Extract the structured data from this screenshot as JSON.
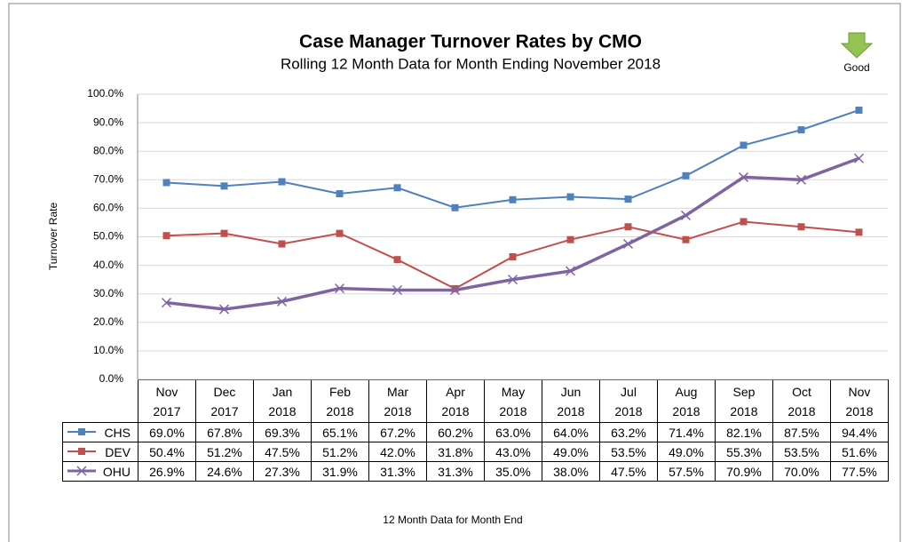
{
  "chart_data": {
    "type": "line",
    "title": "Case Manager Turnover Rates by CMO",
    "subtitle": "Rolling 12 Month Data for Month Ending November 2018",
    "annotation": "Good",
    "x_label": "12 Month Data for Month End",
    "y_label": "Turnover Rate",
    "categories": [
      "Nov 2017",
      "Dec 2017",
      "Jan 2018",
      "Feb 2018",
      "Mar 2018",
      "Apr 2018",
      "May 2018",
      "Jun 2018",
      "Jul 2018",
      "Aug 2018",
      "Sep 2018",
      "Oct 2018",
      "Nov 2018"
    ],
    "series": [
      {
        "name": "CHS",
        "color": "#4f81bd",
        "marker": "square",
        "values": [
          69.0,
          67.8,
          69.3,
          65.1,
          67.2,
          60.2,
          63.0,
          64.0,
          63.2,
          71.4,
          82.1,
          87.5,
          94.4
        ],
        "value_labels": [
          "69.0%",
          "67.8%",
          "69.3%",
          "65.1%",
          "67.2%",
          "60.2%",
          "63.0%",
          "64.0%",
          "63.2%",
          "71.4%",
          "82.1%",
          "87.5%",
          "94.4%"
        ]
      },
      {
        "name": "DEV",
        "color": "#c0504d",
        "marker": "square",
        "values": [
          50.4,
          51.2,
          47.5,
          51.2,
          42.0,
          31.8,
          43.0,
          49.0,
          53.5,
          49.0,
          55.3,
          53.5,
          51.6
        ],
        "value_labels": [
          "50.4%",
          "51.2%",
          "47.5%",
          "51.2%",
          "42.0%",
          "31.8%",
          "43.0%",
          "49.0%",
          "53.5%",
          "49.0%",
          "55.3%",
          "53.5%",
          "51.6%"
        ]
      },
      {
        "name": "OHU",
        "color": "#8064a2",
        "marker": "x",
        "values": [
          26.9,
          24.6,
          27.3,
          31.9,
          31.3,
          31.3,
          35.0,
          38.0,
          47.5,
          57.5,
          70.9,
          70.0,
          77.5
        ],
        "value_labels": [
          "26.9%",
          "24.6%",
          "27.3%",
          "31.9%",
          "31.3%",
          "31.3%",
          "35.0%",
          "38.0%",
          "47.5%",
          "57.5%",
          "70.9%",
          "70.0%",
          "77.5%"
        ]
      }
    ],
    "ylim": [
      0,
      100
    ],
    "yticks": [
      {
        "value": 0,
        "label": "0.0%"
      },
      {
        "value": 10,
        "label": "10.0%"
      },
      {
        "value": 20,
        "label": "20.0%"
      },
      {
        "value": 30,
        "label": "30.0%"
      },
      {
        "value": 40,
        "label": "40.0%"
      },
      {
        "value": 50,
        "label": "50.0%"
      },
      {
        "value": 60,
        "label": "60.0%"
      },
      {
        "value": 70,
        "label": "70.0%"
      },
      {
        "value": 80,
        "label": "80.0%"
      },
      {
        "value": 90,
        "label": "90.0%"
      },
      {
        "value": 100,
        "label": "100.0%"
      }
    ],
    "grid": true
  }
}
